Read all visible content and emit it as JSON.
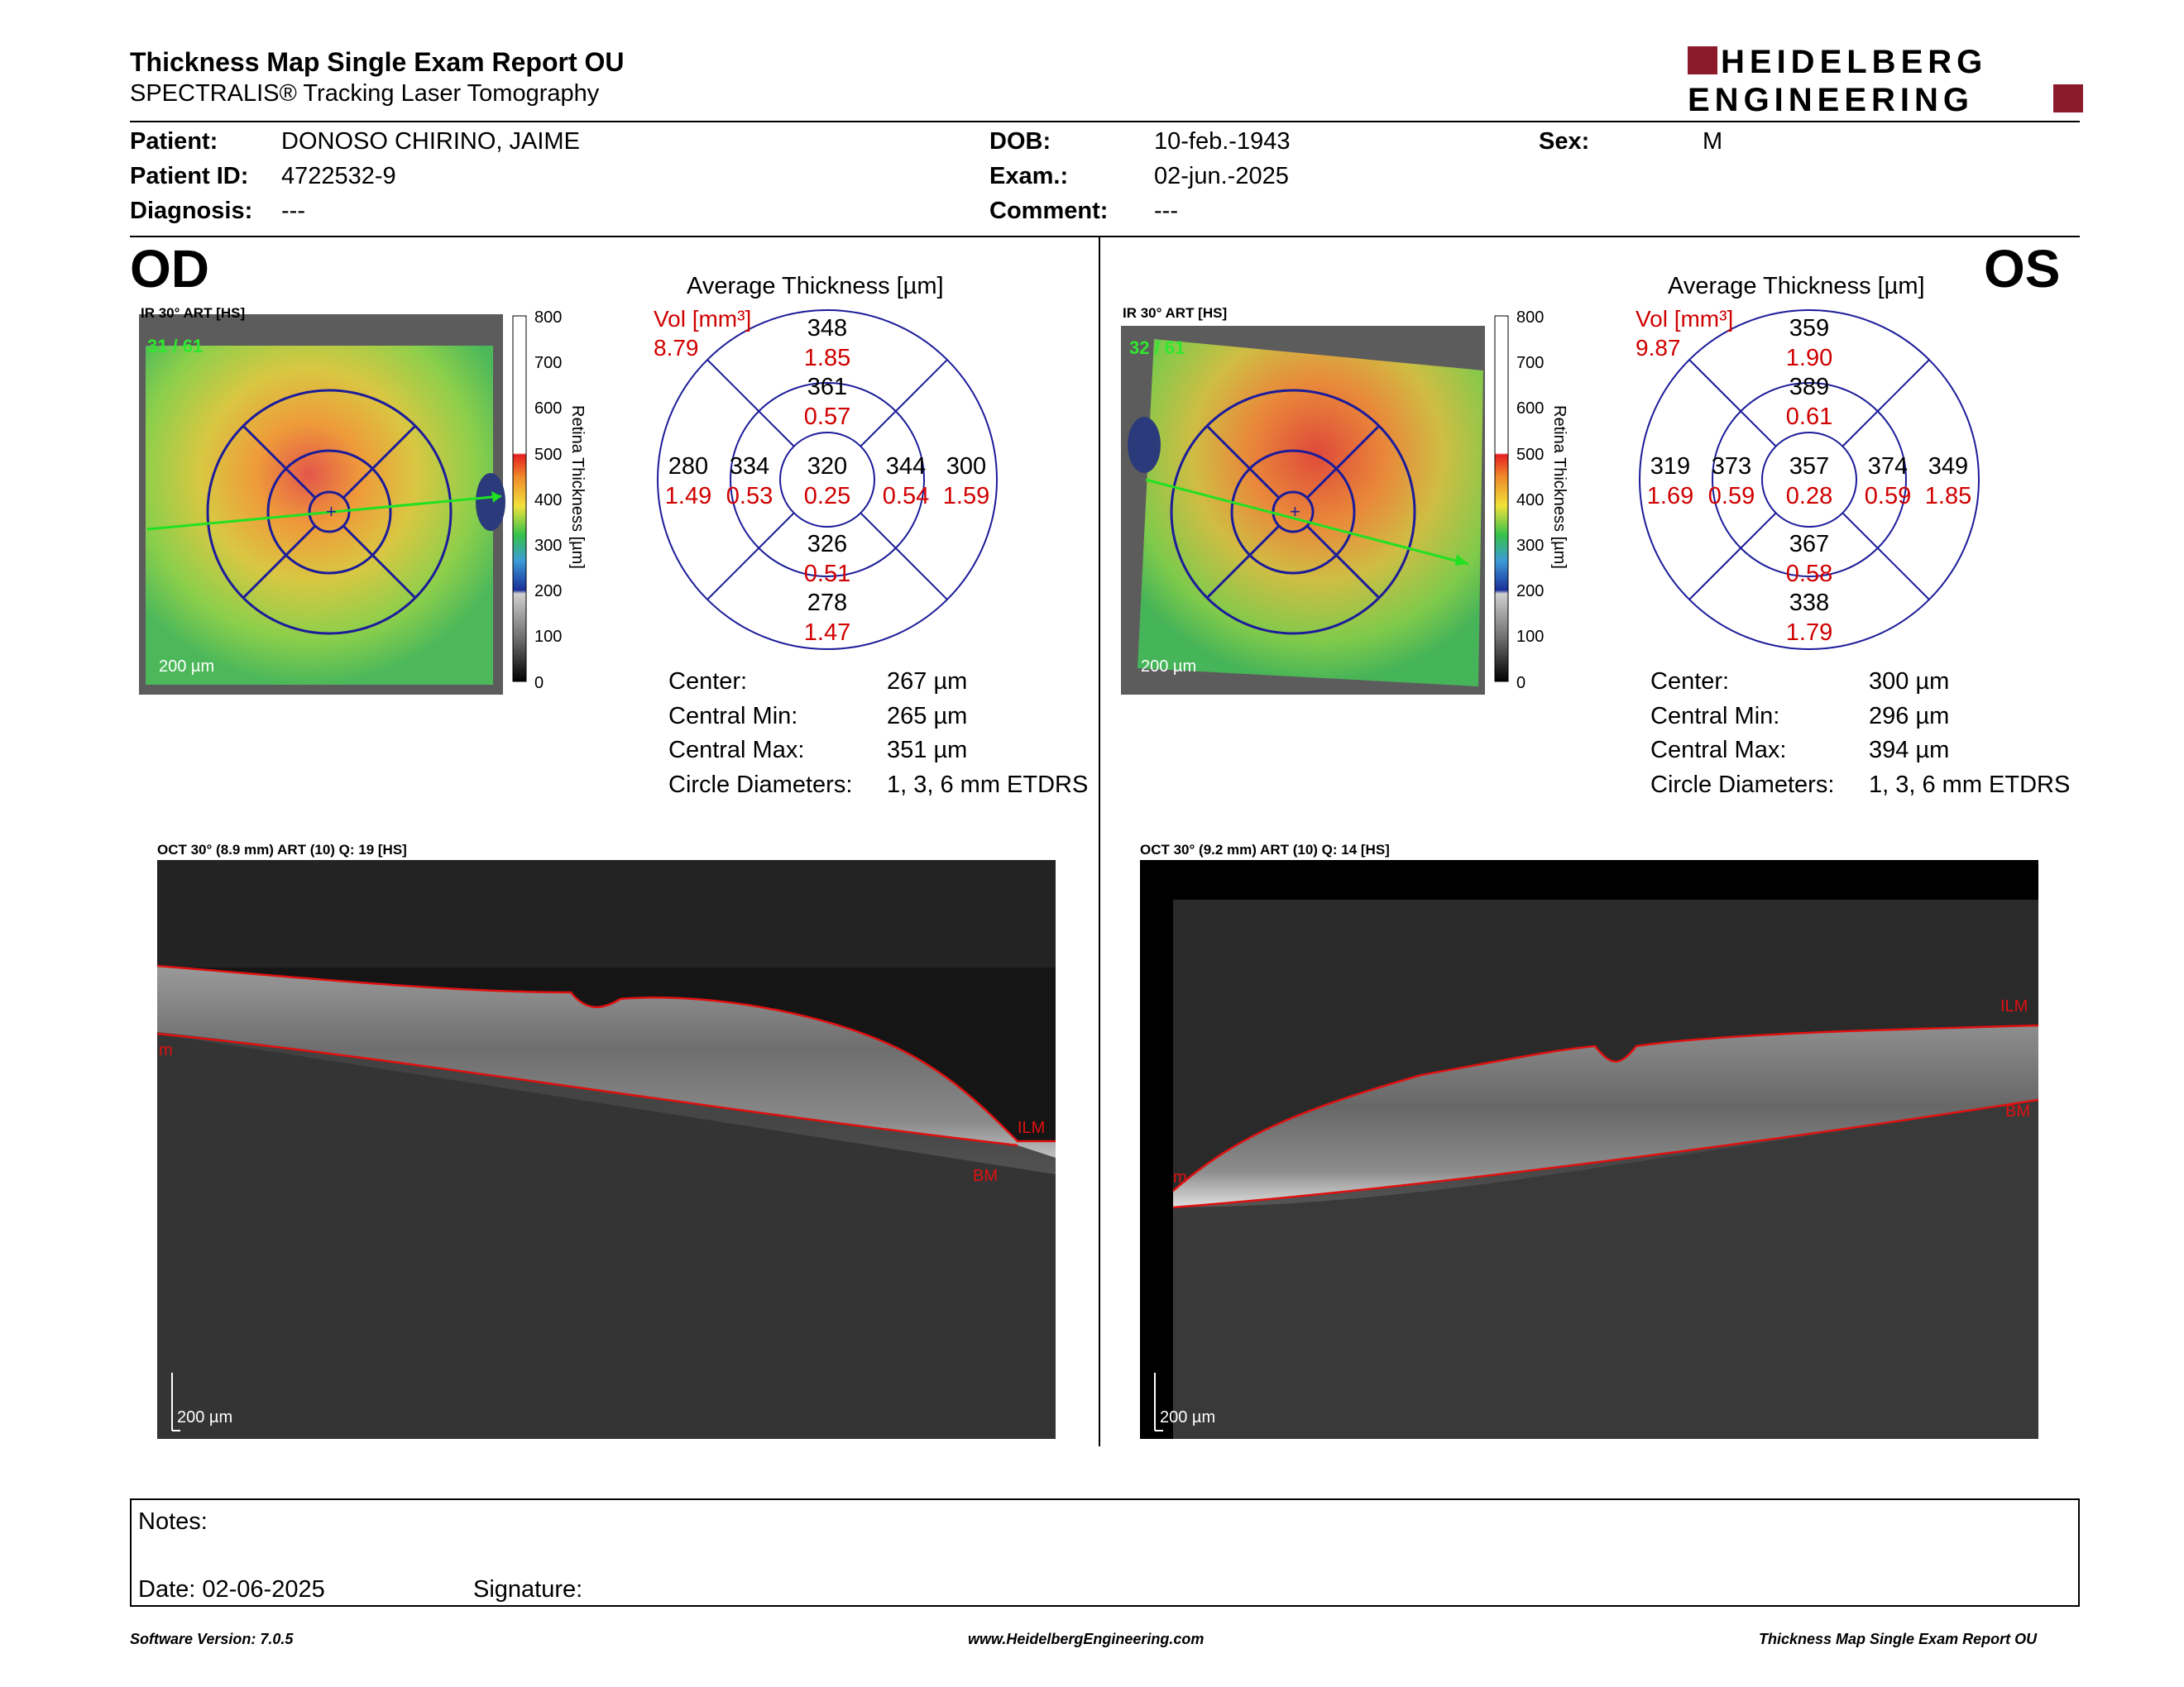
{
  "header": {
    "title": "Thickness Map Single Exam Report OU",
    "subtitle": "SPECTRALIS® Tracking Laser Tomography",
    "logo_line1": "HEIDELBERG",
    "logo_line2": "ENGINEERING",
    "brand_color": "#8b1a2b"
  },
  "patient": {
    "patient_label": "Patient:",
    "patient_value": "DONOSO CHIRINO, JAIME",
    "patient_id_label": "Patient ID:",
    "patient_id_value": "4722532-9",
    "diagnosis_label": "Diagnosis:",
    "diagnosis_value": "---",
    "dob_label": "DOB:",
    "dob_value": "10-feb.-1943",
    "exam_label": "Exam.:",
    "exam_value": "02-jun.-2025",
    "comment_label": "Comment:",
    "comment_value": "---",
    "sex_label": "Sex:",
    "sex_value": "M"
  },
  "colorbar": {
    "ticks": [
      "800",
      "700",
      "600",
      "500",
      "400",
      "300",
      "200",
      "100",
      "0"
    ],
    "label": "Retina Thickness [µm]"
  },
  "od": {
    "eye": "OD",
    "fundus_header": "IR 30° ART [HS]",
    "frame": "31 / 61",
    "scale": "200 µm",
    "avg_title": "Average Thickness [µm]",
    "vol_label": "Vol [mm³]",
    "vol_total": "8.79",
    "sectors": {
      "outer_sup": {
        "t": "348",
        "v": "1.85"
      },
      "inner_sup": {
        "t": "361",
        "v": "0.57"
      },
      "outer_temp": {
        "t": "280",
        "v": "1.49"
      },
      "inner_temp": {
        "t": "334",
        "v": "0.53"
      },
      "center": {
        "t": "320",
        "v": "0.25"
      },
      "inner_nas": {
        "t": "344",
        "v": "0.54"
      },
      "outer_nas": {
        "t": "300",
        "v": "1.59"
      },
      "inner_inf": {
        "t": "326",
        "v": "0.51"
      },
      "outer_inf": {
        "t": "278",
        "v": "1.47"
      }
    },
    "stats": {
      "center_label": "Center:",
      "center_value": "267 µm",
      "min_label": "Central Min:",
      "min_value": "265 µm",
      "max_label": "Central Max:",
      "max_value": "351 µm",
      "diam_label": "Circle Diameters:",
      "diam_value": "1, 3, 6 mm ETDRS"
    },
    "oct_header": "OCT 30° (8.9 mm) ART (10) Q: 19 [HS]",
    "oct_scale": "200 µm",
    "layer_ilm": "ILM",
    "layer_bm": "BM",
    "layer_m": "m"
  },
  "os": {
    "eye": "OS",
    "fundus_header": "IR 30° ART [HS]",
    "frame": "32 / 61",
    "scale": "200 µm",
    "avg_title": "Average Thickness [µm]",
    "vol_label": "Vol [mm³]",
    "vol_total": "9.87",
    "sectors": {
      "outer_sup": {
        "t": "359",
        "v": "1.90"
      },
      "inner_sup": {
        "t": "389",
        "v": "0.61"
      },
      "outer_temp": {
        "t": "319",
        "v": "1.69"
      },
      "inner_temp": {
        "t": "373",
        "v": "0.59"
      },
      "center": {
        "t": "357",
        "v": "0.28"
      },
      "inner_nas": {
        "t": "374",
        "v": "0.59"
      },
      "outer_nas": {
        "t": "349",
        "v": "1.85"
      },
      "inner_inf": {
        "t": "367",
        "v": "0.58"
      },
      "outer_inf": {
        "t": "338",
        "v": "1.79"
      }
    },
    "stats": {
      "center_label": "Center:",
      "center_value": "300 µm",
      "min_label": "Central Min:",
      "min_value": "296 µm",
      "max_label": "Central Max:",
      "max_value": "394 µm",
      "diam_label": "Circle Diameters:",
      "diam_value": "1, 3, 6 mm ETDRS"
    },
    "oct_header": "OCT 30° (9.2 mm) ART (10) Q: 14 [HS]",
    "oct_scale": "200 µm",
    "layer_ilm": "ILM",
    "layer_bm": "BM",
    "layer_m": "m"
  },
  "notes": {
    "notes_label": "Notes:",
    "date_label": "Date: 02-06-2025",
    "signature_label": "Signature:"
  },
  "footer": {
    "software": "Software Version: 7.0.5",
    "website": "www.HeidelbergEngineering.com",
    "report": "Thickness Map Single Exam Report OU"
  }
}
